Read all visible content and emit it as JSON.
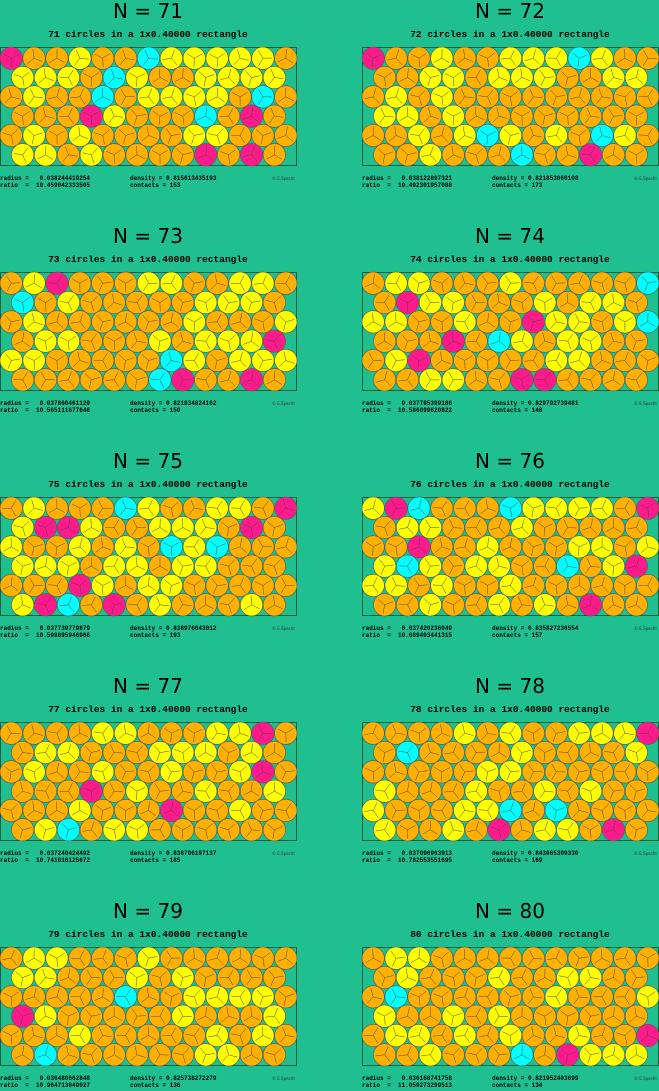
{
  "panels": [
    {
      "title": "N = 71",
      "subtitle": "71 circles in a 1x0.40000 rectangle",
      "radius": "radius =   0.038244419254",
      "density": "density = 0.815613435193",
      "ratio": "ratio  =  10.459042333505",
      "contacts": "contacts = 153",
      "credit": "© E.Specht"
    },
    {
      "title": "N = 72",
      "subtitle": "72 circles in a 1x0.40000 rectangle",
      "radius": "radius =   0.038122897321",
      "density": "density = 0.821853060108",
      "ratio": "ratio  =  10.492301957088",
      "contacts": "contacts = 173",
      "credit": "© E.Specht"
    },
    {
      "title": "N = 73",
      "subtitle": "73 circles in a 1x0.40000 rectangle",
      "radius": "radius =   0.037860461129",
      "density": "density = 0.821834824162",
      "ratio": "ratio  =  10.565111677646",
      "contacts": "contacts = 150",
      "credit": "© E.Specht"
    },
    {
      "title": "N = 74",
      "subtitle": "74 circles in a 1x0.40000 rectangle",
      "radius": "radius =   0.037785399186",
      "density": "density = 0.829792739481",
      "ratio": "ratio  =  10.586099620822",
      "contacts": "contacts = 148",
      "credit": "© E.Specht"
    },
    {
      "title": "N = 75",
      "subtitle": "75 circles in a 1x0.40000 rectangle",
      "radius": "radius =   0.037739779879",
      "density": "density = 0.838976643012",
      "ratio": "ratio  =  10.598895946966",
      "contacts": "contacts = 193",
      "credit": "© E.Specht"
    },
    {
      "title": "N = 76",
      "subtitle": "76 circles in a 1x0.40000 rectangle",
      "radius": "radius =   0.037420236049",
      "density": "density = 0.835827236554",
      "ratio": "ratio  =  10.689403441315",
      "contacts": "contacts = 157",
      "credit": "© E.Specht"
    },
    {
      "title": "N = 77",
      "subtitle": "77 circles in a 1x0.40000 rectangle",
      "radius": "radius =   0.037240424492",
      "density": "density = 0.838706197137",
      "ratio": "ratio  =  10.741016125672",
      "contacts": "contacts = 185",
      "credit": "© E.Specht"
    },
    {
      "title": "N = 78",
      "subtitle": "78 circles in a 1x0.40000 rectangle",
      "radius": "radius =   0.037096963913",
      "density": "density = 0.843065309330",
      "ratio": "ratio  =  10.782553551695",
      "contacts": "contacts = 169",
      "credit": "© E.Specht"
    },
    {
      "title": "N = 79",
      "subtitle": "79 circles in a 1x0.40000 rectangle",
      "radius": "radius =   0.036480662848",
      "density": "density = 0.825738272279",
      "ratio": "ratio  =  10.964713049027",
      "contacts": "contacts = 136",
      "credit": "© E.Specht"
    },
    {
      "title": "N = 80",
      "subtitle": "80 circles in a 1x0.40000 rectangle",
      "radius": "radius =   0.036168741758",
      "density": "density = 0.821952403699",
      "ratio": "ratio  =  11.059273299513",
      "contacts": "contacts = 134",
      "credit": "© E.Specht"
    }
  ]
}
